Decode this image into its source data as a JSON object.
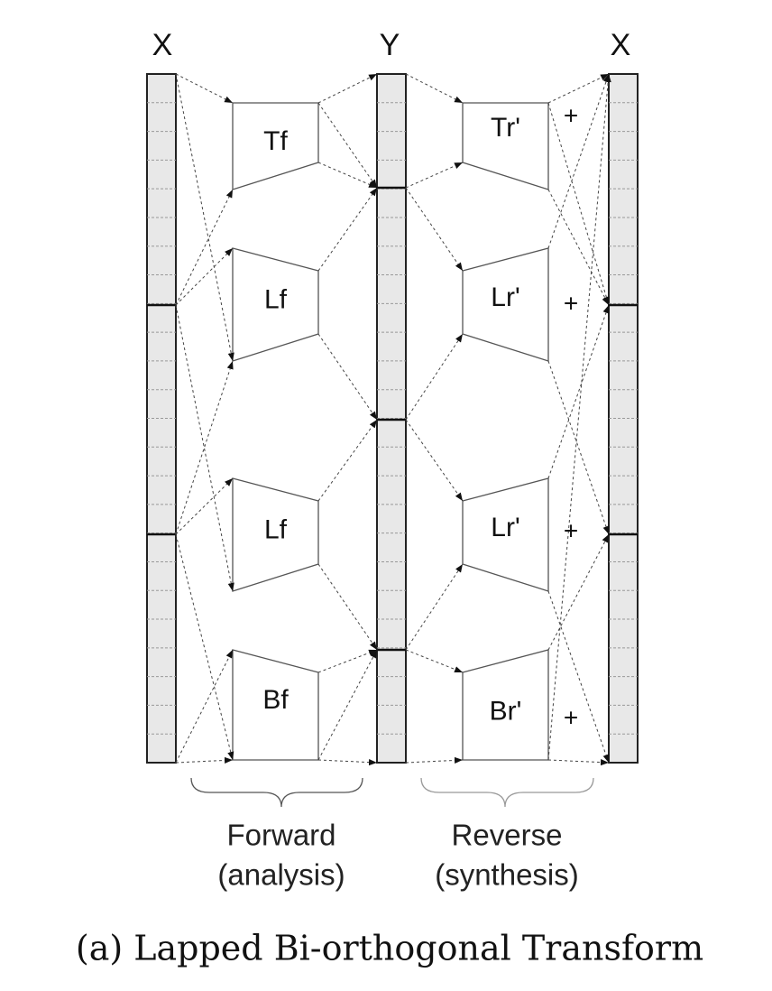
{
  "column_labels": [
    "X",
    "Y",
    "X"
  ],
  "forward_blocks": [
    "Tf",
    "Lf",
    "Lf",
    "Bf"
  ],
  "reverse_blocks": [
    "Tr'",
    "Lr'",
    "Lr'",
    "Br'"
  ],
  "plus_signs": [
    "+",
    "+",
    "+",
    "+"
  ],
  "forward_label": [
    "Forward",
    "(analysis)"
  ],
  "reverse_label": [
    "Reverse",
    "(synthesis)"
  ],
  "caption": "(a) Lapped Bi-orthogonal Transform"
}
